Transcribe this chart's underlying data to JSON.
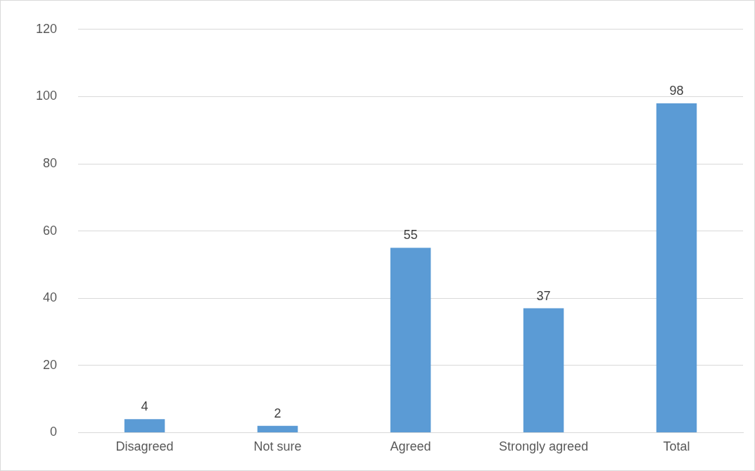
{
  "chart_data": {
    "type": "bar",
    "categories": [
      "Disagreed",
      "Not sure",
      "Agreed",
      "Strongly agreed",
      "Total"
    ],
    "values": [
      4,
      2,
      55,
      37,
      98
    ],
    "color": "#5b9bd5",
    "ylim": [
      0,
      120
    ],
    "yticks": [
      0,
      20,
      40,
      60,
      80,
      100,
      120
    ],
    "grid": "y",
    "data_labels": true,
    "legend": false
  }
}
